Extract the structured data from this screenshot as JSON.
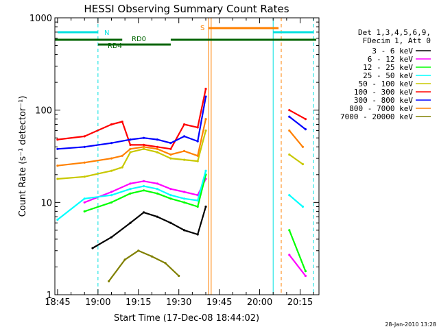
{
  "chart_data": {
    "type": "line",
    "title": "HESSI Observing Summary Count Rates",
    "xlabel": "Start Time (17-Dec-08 18:44:02)",
    "ylabel": "Count Rate (s⁻¹ detector⁻¹)",
    "y_scale": "log",
    "ylim": [
      1,
      1000
    ],
    "xlim": [
      "18:44",
      "20:22"
    ],
    "x_ticks": [
      "18:45",
      "19:00",
      "19:15",
      "19:30",
      "19:45",
      "20:00",
      "20:15"
    ],
    "y_ticks": [
      "1",
      "10",
      "100",
      "1000"
    ],
    "legend_position": "right",
    "legend_header": [
      "Det 1,3,4,5,6,9,",
      "FDecim 1, Att 0"
    ],
    "footer_date": "28-Jan-2010 13:28",
    "flags": [
      {
        "label": "N",
        "color": "#00e0e0",
        "segments": [
          [
            "18:45",
            "19:00"
          ],
          [
            "20:05",
            "20:20"
          ]
        ]
      },
      {
        "label": "RD0",
        "color": "#006400",
        "segments": [
          [
            "18:44",
            "19:09"
          ],
          [
            "19:09",
            "19:27"
          ],
          [
            "19:27",
            "20:21"
          ]
        ]
      },
      {
        "label": "RD4",
        "color": "#006400",
        "segments": [
          [
            "19:00",
            "19:19"
          ]
        ]
      },
      {
        "label": "S",
        "color": "#ff8000",
        "segments": [
          [
            "19:41",
            "20:07"
          ]
        ]
      }
    ],
    "flag_labels": [
      "N",
      "RD0",
      "RD4",
      "S"
    ],
    "series": [
      {
        "name": "3 - 6 keV",
        "color": "#000000",
        "values": [
          [
            "18:58",
            3.2
          ],
          [
            "19:05",
            4.2
          ],
          [
            "19:12",
            6
          ],
          [
            "19:17",
            7.8
          ],
          [
            "19:22",
            7
          ],
          [
            "19:27",
            6
          ],
          [
            "19:32",
            5
          ],
          [
            "19:37",
            4.5
          ],
          [
            "19:40",
            9
          ]
        ]
      },
      {
        "name": "6 - 12 keV",
        "color": "#ff00ff",
        "values": [
          [
            "18:55",
            10
          ],
          [
            "19:05",
            13
          ],
          [
            "19:12",
            16
          ],
          [
            "19:17",
            17
          ],
          [
            "19:22",
            16
          ],
          [
            "19:27",
            14
          ],
          [
            "19:32",
            13
          ],
          [
            "19:37",
            12
          ],
          [
            "19:40",
            18
          ],
          [
            "20:11",
            2.7
          ],
          [
            "20:17",
            1.6
          ]
        ]
      },
      {
        "name": "12 - 25 keV",
        "color": "#00ff00",
        "values": [
          [
            "18:55",
            8
          ],
          [
            "19:05",
            10
          ],
          [
            "19:12",
            12.5
          ],
          [
            "19:17",
            13.5
          ],
          [
            "19:22",
            12.5
          ],
          [
            "19:27",
            11
          ],
          [
            "19:32",
            10
          ],
          [
            "19:37",
            9
          ],
          [
            "19:40",
            20
          ],
          [
            "20:11",
            5
          ],
          [
            "20:17",
            1.8
          ]
        ]
      },
      {
        "name": "25 - 50 keV",
        "color": "#00ffff",
        "values": [
          [
            "18:45",
            6.5
          ],
          [
            "18:55",
            11
          ],
          [
            "19:05",
            12
          ],
          [
            "19:12",
            14
          ],
          [
            "19:17",
            15
          ],
          [
            "19:22",
            14
          ],
          [
            "19:27",
            12
          ],
          [
            "19:32",
            11
          ],
          [
            "19:37",
            10.5
          ],
          [
            "19:40",
            22
          ],
          [
            "20:11",
            12
          ],
          [
            "20:16",
            9
          ]
        ]
      },
      {
        "name": "50 - 100 keV",
        "color": "#c8c800",
        "values": [
          [
            "18:45",
            18
          ],
          [
            "18:55",
            19
          ],
          [
            "19:05",
            22
          ],
          [
            "19:09",
            24
          ],
          [
            "19:12",
            35
          ],
          [
            "19:17",
            38
          ],
          [
            "19:22",
            35
          ],
          [
            "19:27",
            30
          ],
          [
            "19:32",
            29
          ],
          [
            "19:37",
            28
          ],
          [
            "19:40",
            60
          ],
          [
            "20:11",
            33
          ],
          [
            "20:16",
            26
          ]
        ]
      },
      {
        "name": "100 - 300 keV",
        "color": "#ff0000",
        "values": [
          [
            "18:45",
            48
          ],
          [
            "18:55",
            52
          ],
          [
            "19:05",
            70
          ],
          [
            "19:09",
            75
          ],
          [
            "19:12",
            42
          ],
          [
            "19:17",
            42
          ],
          [
            "19:22",
            40
          ],
          [
            "19:27",
            38
          ],
          [
            "19:32",
            70
          ],
          [
            "19:37",
            65
          ],
          [
            "19:40",
            170
          ],
          [
            "20:11",
            100
          ],
          [
            "20:17",
            80
          ]
        ]
      },
      {
        "name": "300 - 800 keV",
        "color": "#0000ff",
        "values": [
          [
            "18:45",
            38
          ],
          [
            "18:55",
            40
          ],
          [
            "19:05",
            44
          ],
          [
            "19:12",
            48
          ],
          [
            "19:17",
            50
          ],
          [
            "19:22",
            48
          ],
          [
            "19:27",
            44
          ],
          [
            "19:32",
            52
          ],
          [
            "19:37",
            46
          ],
          [
            "19:40",
            140
          ],
          [
            "20:11",
            85
          ],
          [
            "20:17",
            62
          ]
        ]
      },
      {
        "name": "800 - 7000 keV",
        "color": "#ff8000",
        "values": [
          [
            "18:45",
            25
          ],
          [
            "18:55",
            27
          ],
          [
            "19:05",
            30
          ],
          [
            "19:09",
            32
          ],
          [
            "19:12",
            38
          ],
          [
            "19:17",
            40
          ],
          [
            "19:22",
            38
          ],
          [
            "19:27",
            33
          ],
          [
            "19:32",
            36
          ],
          [
            "19:37",
            32
          ],
          [
            "19:40",
            80
          ],
          [
            "20:11",
            60
          ],
          [
            "20:16",
            40
          ]
        ]
      },
      {
        "name": "7000 - 20000 keV",
        "color": "#808000",
        "values": [
          [
            "19:04",
            1.4
          ],
          [
            "19:10",
            2.4
          ],
          [
            "19:15",
            3
          ],
          [
            "19:20",
            2.6
          ],
          [
            "19:25",
            2.2
          ],
          [
            "19:30",
            1.6
          ]
        ]
      }
    ]
  }
}
